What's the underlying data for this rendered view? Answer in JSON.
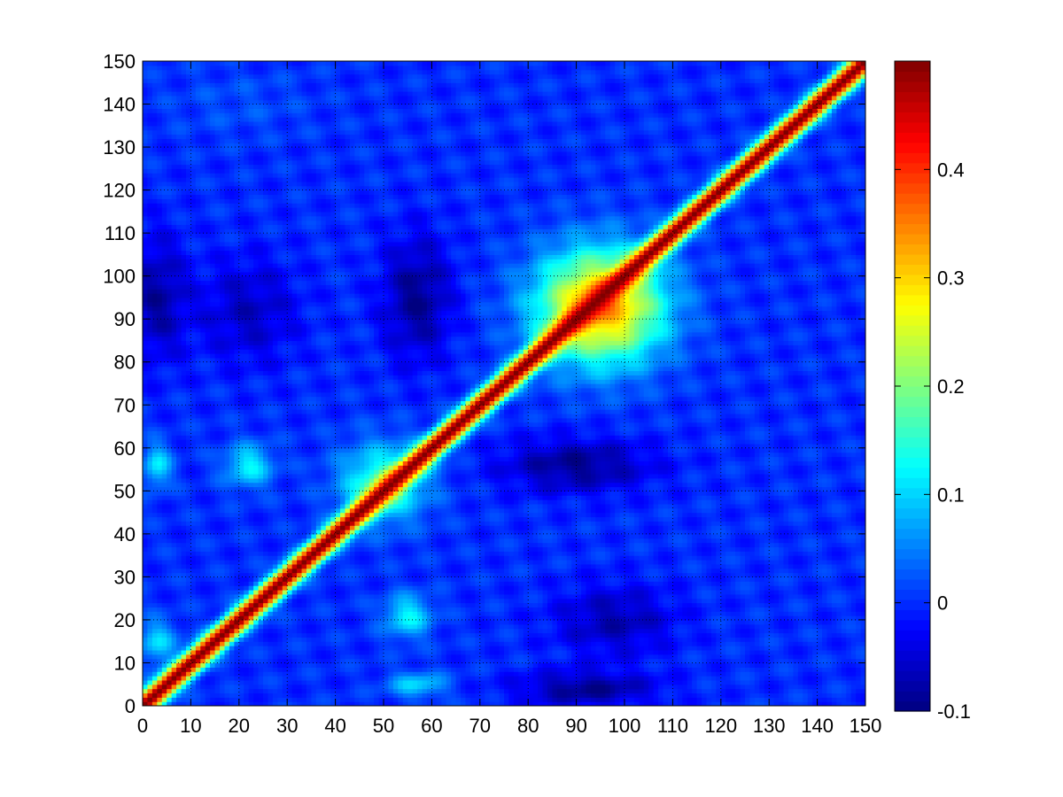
{
  "chart_data": {
    "type": "heatmap",
    "title": "",
    "xlabel": "",
    "ylabel": "",
    "xlim": [
      0,
      150
    ],
    "ylim": [
      0,
      150
    ],
    "x_ticks": [
      0,
      10,
      20,
      30,
      40,
      50,
      60,
      70,
      80,
      90,
      100,
      110,
      120,
      130,
      140,
      150
    ],
    "y_ticks": [
      0,
      10,
      20,
      30,
      40,
      50,
      60,
      70,
      80,
      90,
      100,
      110,
      120,
      130,
      140,
      150
    ],
    "x_tick_labels": [
      "0",
      "10",
      "20",
      "30",
      "40",
      "50",
      "60",
      "70",
      "80",
      "90",
      "100",
      "110",
      "120",
      "130",
      "140",
      "150"
    ],
    "y_tick_labels": [
      "0",
      "10",
      "20",
      "30",
      "40",
      "50",
      "60",
      "70",
      "80",
      "90",
      "100",
      "110",
      "120",
      "130",
      "140",
      "150"
    ],
    "grid": true,
    "colormap": "jet",
    "colorbar": {
      "location": "right",
      "range": [
        -0.1,
        0.5
      ],
      "ticks": [
        -0.1,
        0,
        0.1,
        0.2,
        0.3,
        0.4
      ],
      "tick_labels": [
        "-0.1",
        "0",
        "0.1",
        "0.2",
        "0.3",
        "0.4"
      ]
    },
    "diagonal": {
      "value": 0.5,
      "description_values": "values near 0.5 along x = y"
    },
    "background_value": 0.0,
    "regions": [
      {
        "x": 3,
        "y": 95,
        "rx": 6,
        "ry": 14,
        "value": -0.08
      },
      {
        "x": 22,
        "y": 92,
        "rx": 10,
        "ry": 12,
        "value": -0.06
      },
      {
        "x": 57,
        "y": 95,
        "rx": 7,
        "ry": 14,
        "value": -0.09
      },
      {
        "x": 95,
        "y": 93,
        "rx": 13,
        "ry": 13,
        "value": 0.34
      },
      {
        "x": 90,
        "y": 56,
        "rx": 15,
        "ry": 6,
        "value": -0.09
      },
      {
        "x": 98,
        "y": 20,
        "rx": 12,
        "ry": 8,
        "value": -0.07
      },
      {
        "x": 92,
        "y": 4,
        "rx": 14,
        "ry": 4,
        "value": -0.09
      },
      {
        "x": 22,
        "y": 56,
        "rx": 5,
        "ry": 5,
        "value": 0.12
      },
      {
        "x": 3,
        "y": 56,
        "rx": 3,
        "ry": 5,
        "value": 0.11
      },
      {
        "x": 55,
        "y": 21,
        "rx": 5,
        "ry": 5,
        "value": 0.12
      },
      {
        "x": 57,
        "y": 5,
        "rx": 6,
        "ry": 3,
        "value": 0.1
      },
      {
        "x": 3,
        "y": 15,
        "rx": 4,
        "ry": 5,
        "value": 0.1
      },
      {
        "x": 50,
        "y": 52,
        "rx": 9,
        "ry": 9,
        "value": 0.16
      },
      {
        "x": 20,
        "y": 140,
        "rx": 15,
        "ry": 8,
        "value": 0.02
      }
    ]
  }
}
